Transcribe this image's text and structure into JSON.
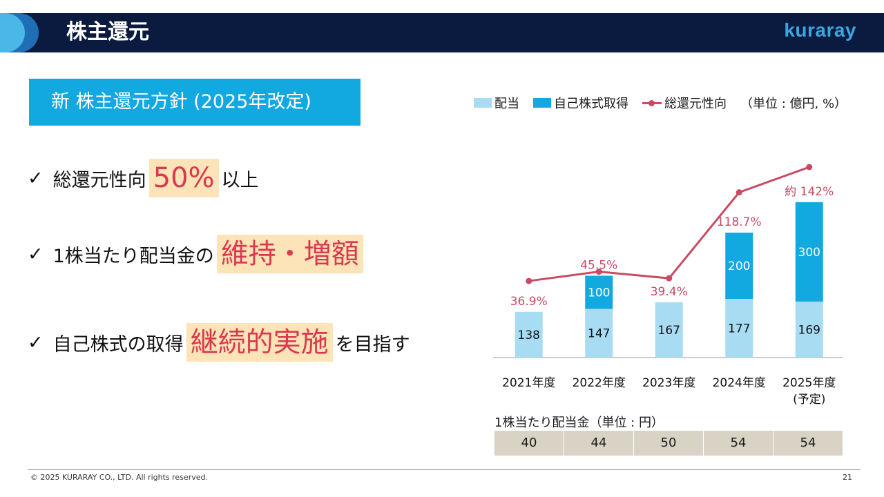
{
  "header": {
    "title": "株主還元",
    "logo": "kuraray"
  },
  "policy": {
    "title": "新 株主還元方針 (2025年改定)"
  },
  "bullets": [
    {
      "check": "✓",
      "pre": "総還元性向",
      "highlight": "50%",
      "post": "以上"
    },
    {
      "check": "✓",
      "pre": "1株当たり配当金の",
      "highlight": "維持・増額",
      "post": ""
    },
    {
      "check": "✓",
      "pre": "自己株式の取得",
      "highlight": "継続的実施",
      "post": "を目指す"
    }
  ],
  "legend": {
    "dividend": "配当",
    "buyback": "自己株式取得",
    "payout": "総還元性向",
    "unit": "（単位 : 億円, %）"
  },
  "colors": {
    "dividend": "#a8dcf3",
    "buyback": "#12a8e0",
    "payout": "#c94a63",
    "header": "#0b1a3f"
  },
  "chart_data": {
    "type": "bar",
    "stacked": true,
    "categories": [
      "2021年度",
      "2022年度",
      "2023年度",
      "2024年度",
      "2025年度"
    ],
    "category_sublabels": [
      "",
      "",
      "",
      "",
      "(予定)"
    ],
    "series": [
      {
        "name": "配当",
        "values": [
          138,
          147,
          167,
          177,
          169
        ]
      },
      {
        "name": "自己株式取得",
        "values": [
          0,
          100,
          0,
          200,
          300
        ]
      }
    ],
    "line_series": {
      "name": "総還元性向",
      "values": [
        36.9,
        45.5,
        39.4,
        118.7,
        142
      ],
      "labels": [
        "36.9%",
        "45.5%",
        "39.4%",
        "118.7%",
        "約 142%"
      ]
    },
    "ylim": [
      0,
      480
    ]
  },
  "dps": {
    "title": "1株当たり配当金（単位 : 円）",
    "values": [
      "40",
      "44",
      "50",
      "54",
      "54"
    ]
  },
  "footer": {
    "copyright": "© 2025 KURARAY CO., LTD. All rights reserved.",
    "page": "21"
  }
}
